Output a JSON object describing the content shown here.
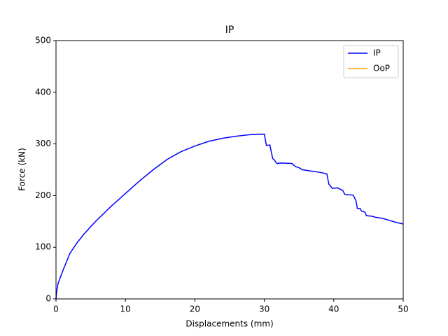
{
  "chart_data": {
    "type": "line",
    "title": "IP",
    "x_label": "Displacements (mm)",
    "y_label": "Force (kN)",
    "x": [
      0,
      0.1,
      0.3,
      1,
      2,
      3,
      4,
      5,
      6,
      8,
      10,
      12,
      14,
      16,
      18,
      20,
      22,
      24,
      26,
      28,
      30,
      30.3,
      30.8,
      31.2,
      31.5,
      31.8,
      32.5,
      34,
      34.5,
      35,
      35.5,
      37,
      38,
      39,
      39.3,
      39.8,
      40.5,
      41.3,
      41.6,
      42.8,
      43.2,
      43.4,
      43.8,
      44,
      44.5,
      44.7,
      45.5,
      46,
      47,
      48,
      49,
      50
    ],
    "series": [
      {
        "name": "IP",
        "color": "#0000ff",
        "values": [
          0,
          15,
          30,
          55,
          88,
          108,
          125,
          140,
          154,
          180,
          204,
          228,
          250,
          270,
          285,
          296,
          305,
          311,
          315,
          318,
          319,
          297,
          298,
          272,
          268,
          262,
          263,
          262,
          256,
          254,
          250,
          247,
          245,
          242,
          222,
          214,
          215,
          210,
          202,
          201,
          190,
          175,
          175,
          170,
          168,
          161,
          160,
          158,
          156,
          152,
          148,
          145
        ]
      },
      {
        "name": "OoP",
        "color": "#ffa500",
        "values": [
          null,
          null,
          null,
          null,
          null,
          null,
          null,
          null,
          null,
          null,
          null,
          null,
          null,
          null,
          null,
          null,
          null,
          null,
          null,
          null,
          null,
          null,
          null,
          null,
          null,
          null,
          null,
          null,
          null,
          null,
          null,
          null,
          null,
          null,
          null,
          null,
          null,
          null,
          null,
          null,
          null,
          null,
          null,
          null,
          null,
          null,
          null,
          null,
          null,
          null,
          null,
          null
        ]
      }
    ],
    "xlim": [
      0,
      50
    ],
    "xticks": [
      0,
      10,
      20,
      30,
      40,
      50
    ],
    "ylim": [
      0,
      500
    ],
    "yticks": [
      0,
      100,
      200,
      300,
      400,
      500
    ],
    "legend": "upper right"
  }
}
